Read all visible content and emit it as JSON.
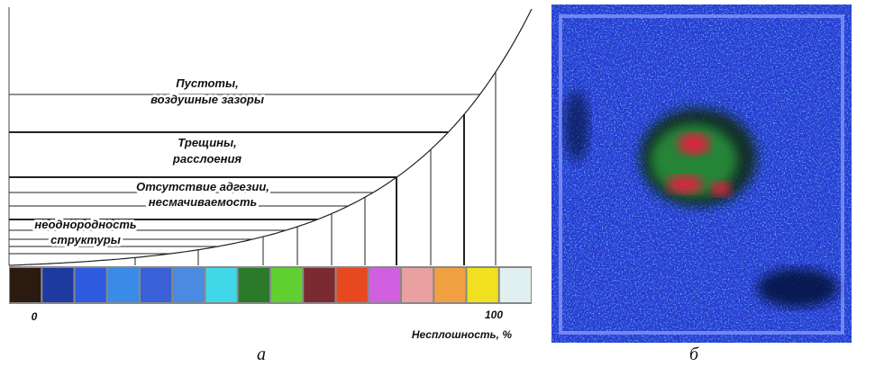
{
  "panel_a": {
    "labels": [
      {
        "line1": "Пустоты,",
        "line2": "воздушные зазоры"
      },
      {
        "line1": "Трещины,",
        "line2": "расслоения"
      },
      {
        "line1": "Отсутствие адгезии,",
        "line2": "несмачиваемость"
      },
      {
        "line1": "неоднородность",
        "line2": "структуры"
      }
    ],
    "scale_min_label": "0",
    "scale_max_label": "100",
    "axis_title": "Несплошность, %",
    "caption": "а"
  },
  "panel_b": {
    "caption": "б"
  }
}
